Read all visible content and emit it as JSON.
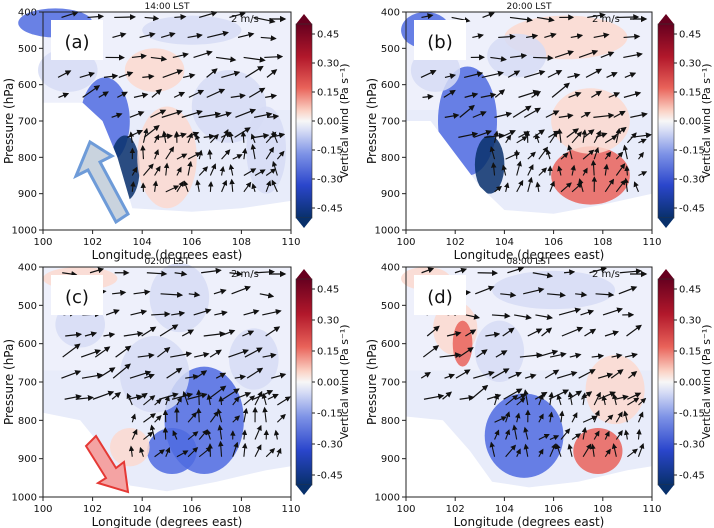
{
  "panels": [
    {
      "label": "(a)",
      "time": "14:00 LST"
    },
    {
      "label": "(b)",
      "time": "20:00 LST"
    },
    {
      "label": "(c)",
      "time": "02:00 LST"
    },
    {
      "label": "(d)",
      "time": "08:00 LST"
    }
  ],
  "reference_vector": "2 m/s",
  "xlabel": "Longitude (degrees east)",
  "ylabel": "Pressure (hPa)",
  "colorbar_label": "Vertical wind (Pa s⁻¹)",
  "colorbar_ticks": [
    "0.45",
    "0.30",
    "0.15",
    "0.00",
    "-0.15",
    "-0.30",
    "-0.45"
  ],
  "colors": {
    "strong_down": "#67001f",
    "mid_down": "#e9635a",
    "weak_down": "#fcd9cf",
    "neutral": "#f7f7f7",
    "weak_up": "#d6dcf5",
    "mid_up": "#4f6be0",
    "strong_up": "#08306b",
    "arrow_a": "#6e9bd8",
    "arrow_c": "#f4a3a3"
  },
  "chart_data": [
    {
      "type": "heatmap",
      "panel": "(a)",
      "title": "14:00 LST",
      "xlabel": "Longitude (degrees east)",
      "ylabel": "Pressure (hPa)",
      "xlim": [
        100,
        110
      ],
      "ylim": [
        1000,
        400
      ],
      "x_ticks": [
        100,
        102,
        104,
        106,
        108,
        110
      ],
      "y_ticks": [
        400,
        500,
        600,
        700,
        800,
        900,
        1000
      ],
      "terrain_top_hpa": [
        [
          100,
          450
        ],
        [
          101,
          520
        ],
        [
          102,
          600
        ],
        [
          102.8,
          700
        ],
        [
          103.3,
          850
        ],
        [
          103.8,
          940
        ],
        [
          105,
          950
        ],
        [
          107,
          940
        ],
        [
          109,
          920
        ],
        [
          110,
          900
        ]
      ],
      "colormap": "bwr_r",
      "color_range": [
        -0.45,
        0.45
      ],
      "features": "ascent (blue, -0.15 to -0.45 Pa/s) along eastern slope 102.5-104E from 600-900 hPa; weak descent (red) over 104-106E at 700-900 hPa; westerlies aloft"
    },
    {
      "type": "heatmap",
      "panel": "(b)",
      "title": "20:00 LST",
      "xlabel": "Longitude (degrees east)",
      "ylabel": "Pressure (hPa)",
      "xlim": [
        100,
        110
      ],
      "ylim": [
        1000,
        400
      ],
      "x_ticks": [
        100,
        102,
        104,
        106,
        108,
        110
      ],
      "y_ticks": [
        400,
        500,
        600,
        700,
        800,
        900,
        1000
      ],
      "colormap": "bwr_r",
      "color_range": [
        -0.45,
        0.45
      ],
      "features": "ascent near 100-104E at 450-900 hPa; descent (red, 0.15-0.30 Pa/s) over 106-109E at 800-920 hPa"
    },
    {
      "type": "heatmap",
      "panel": "(c)",
      "title": "02:00 LST",
      "xlabel": "Longitude (degrees east)",
      "ylabel": "Pressure (hPa)",
      "xlim": [
        100,
        110
      ],
      "ylim": [
        1000,
        400
      ],
      "x_ticks": [
        100,
        102,
        104,
        106,
        108,
        110
      ],
      "y_ticks": [
        400,
        500,
        600,
        700,
        800,
        900,
        1000
      ],
      "colormap": "bwr_r",
      "color_range": [
        -0.45,
        0.45
      ],
      "features": "broad ascent (blue) 104-108E from 700-950 hPa; weak descent near 103-104E at low levels"
    },
    {
      "type": "heatmap",
      "panel": "(d)",
      "title": "08:00 LST",
      "xlabel": "Longitude (degrees east)",
      "ylabel": "Pressure (hPa)",
      "xlim": [
        100,
        110
      ],
      "ylim": [
        1000,
        400
      ],
      "x_ticks": [
        100,
        102,
        104,
        106,
        108,
        110
      ],
      "y_ticks": [
        400,
        500,
        600,
        700,
        800,
        900,
        1000
      ],
      "colormap": "bwr_r",
      "color_range": [
        -0.45,
        0.45
      ],
      "features": "ascent 103.5-106E at 750-950 hPa; descent patches near 101.5-103E and 107-109E"
    }
  ]
}
